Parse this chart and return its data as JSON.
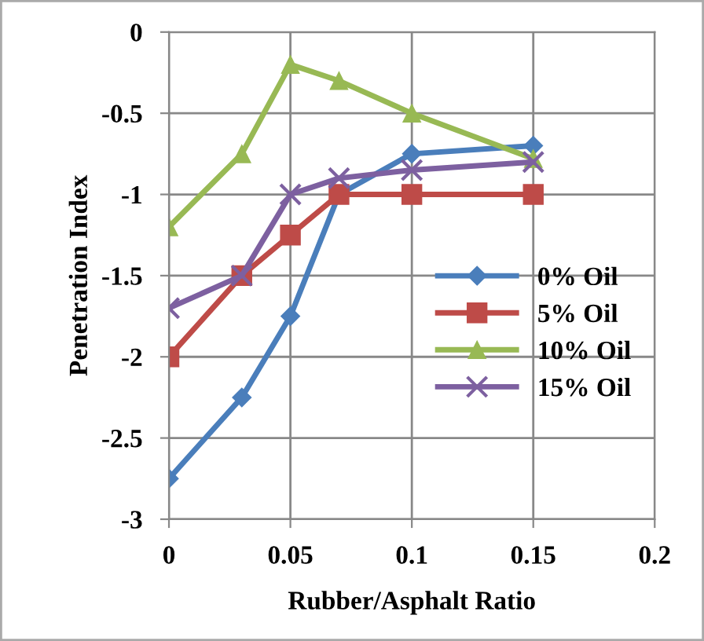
{
  "chart_data": {
    "type": "line",
    "xlabel": "Rubber/Asphalt Ratio",
    "ylabel": "Penetration Index",
    "x": [
      0,
      0.03,
      0.05,
      0.07,
      0.1,
      0.15
    ],
    "xlim": [
      0,
      0.2
    ],
    "xticks": [
      0,
      0.05,
      0.1,
      0.15,
      0.2
    ],
    "ylim": [
      -3,
      0
    ],
    "yticks": [
      -3,
      -2.5,
      -2,
      -1.5,
      -1,
      -0.5,
      0
    ],
    "grid": true,
    "legend": "right",
    "line_style": "solid",
    "series": [
      {
        "name": "0% Oil",
        "color": "#4a7ebb",
        "marker": "diamond",
        "values": [
          -2.75,
          -2.25,
          -1.75,
          -1.0,
          -0.75,
          -0.7
        ]
      },
      {
        "name": "5% Oil",
        "color": "#be4b48",
        "marker": "square",
        "values": [
          -2.0,
          -1.5,
          -1.25,
          -1.0,
          -1.0,
          -1.0
        ]
      },
      {
        "name": "10% Oil",
        "color": "#98b954",
        "marker": "triangle",
        "values": [
          -1.2,
          -0.75,
          -0.2,
          -0.3,
          -0.5,
          -0.78
        ]
      },
      {
        "name": "15% Oil",
        "color": "#7d60a0",
        "marker": "cross",
        "values": [
          -1.7,
          -1.5,
          -1.0,
          -0.9,
          -0.85,
          -0.8
        ]
      }
    ]
  }
}
